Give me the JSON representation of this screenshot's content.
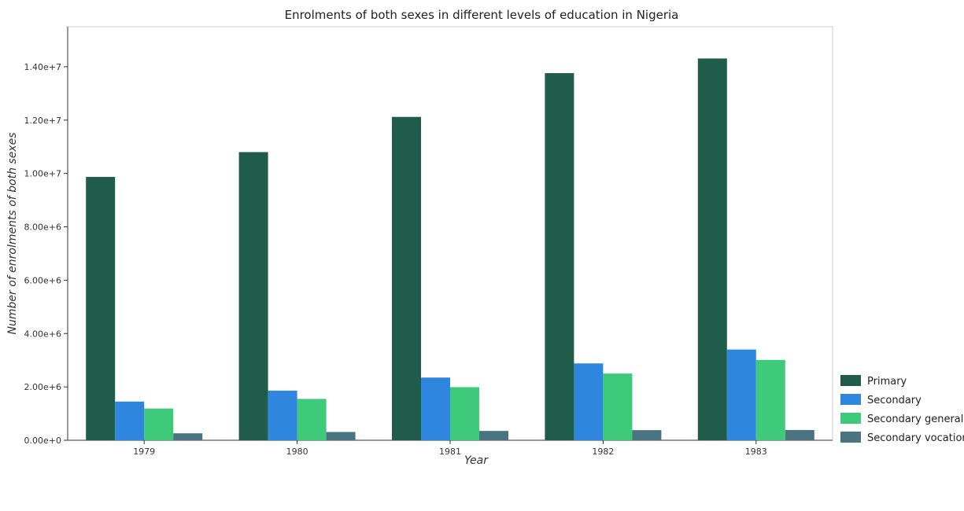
{
  "chart_data": {
    "type": "bar",
    "title": "Enrolments of both sexes in different levels of education in Nigeria",
    "xlabel": "Year",
    "ylabel": "Number of enrolments of both sexes",
    "categories": [
      "1979",
      "1980",
      "1981",
      "1982",
      "1983"
    ],
    "ylim": [
      0,
      15500000
    ],
    "yticks": [
      0,
      2000000,
      4000000,
      6000000,
      8000000,
      10000000,
      12000000,
      14000000
    ],
    "ytick_labels": [
      "0.00e+0",
      "2.00e+6",
      "4.00e+6",
      "6.00e+6",
      "8.00e+6",
      "1.00e+7",
      "1.20e+7",
      "1.40e+7"
    ],
    "grid": false,
    "legend_position": "bottom-right",
    "series": [
      {
        "name": "Primary",
        "color": "#1f5c4a",
        "values": [
          9870000,
          10800000,
          12120000,
          13760000,
          14310000
        ]
      },
      {
        "name": "Secondary",
        "color": "#2e86de",
        "values": [
          1450000,
          1860000,
          2350000,
          2880000,
          3400000
        ]
      },
      {
        "name": "Secondary general",
        "color": "#3fc97a",
        "values": [
          1190000,
          1550000,
          1990000,
          2500000,
          3010000
        ]
      },
      {
        "name": "Secondary vocational",
        "color": "#4a7580",
        "values": [
          260000,
          310000,
          350000,
          380000,
          385000
        ]
      }
    ]
  }
}
